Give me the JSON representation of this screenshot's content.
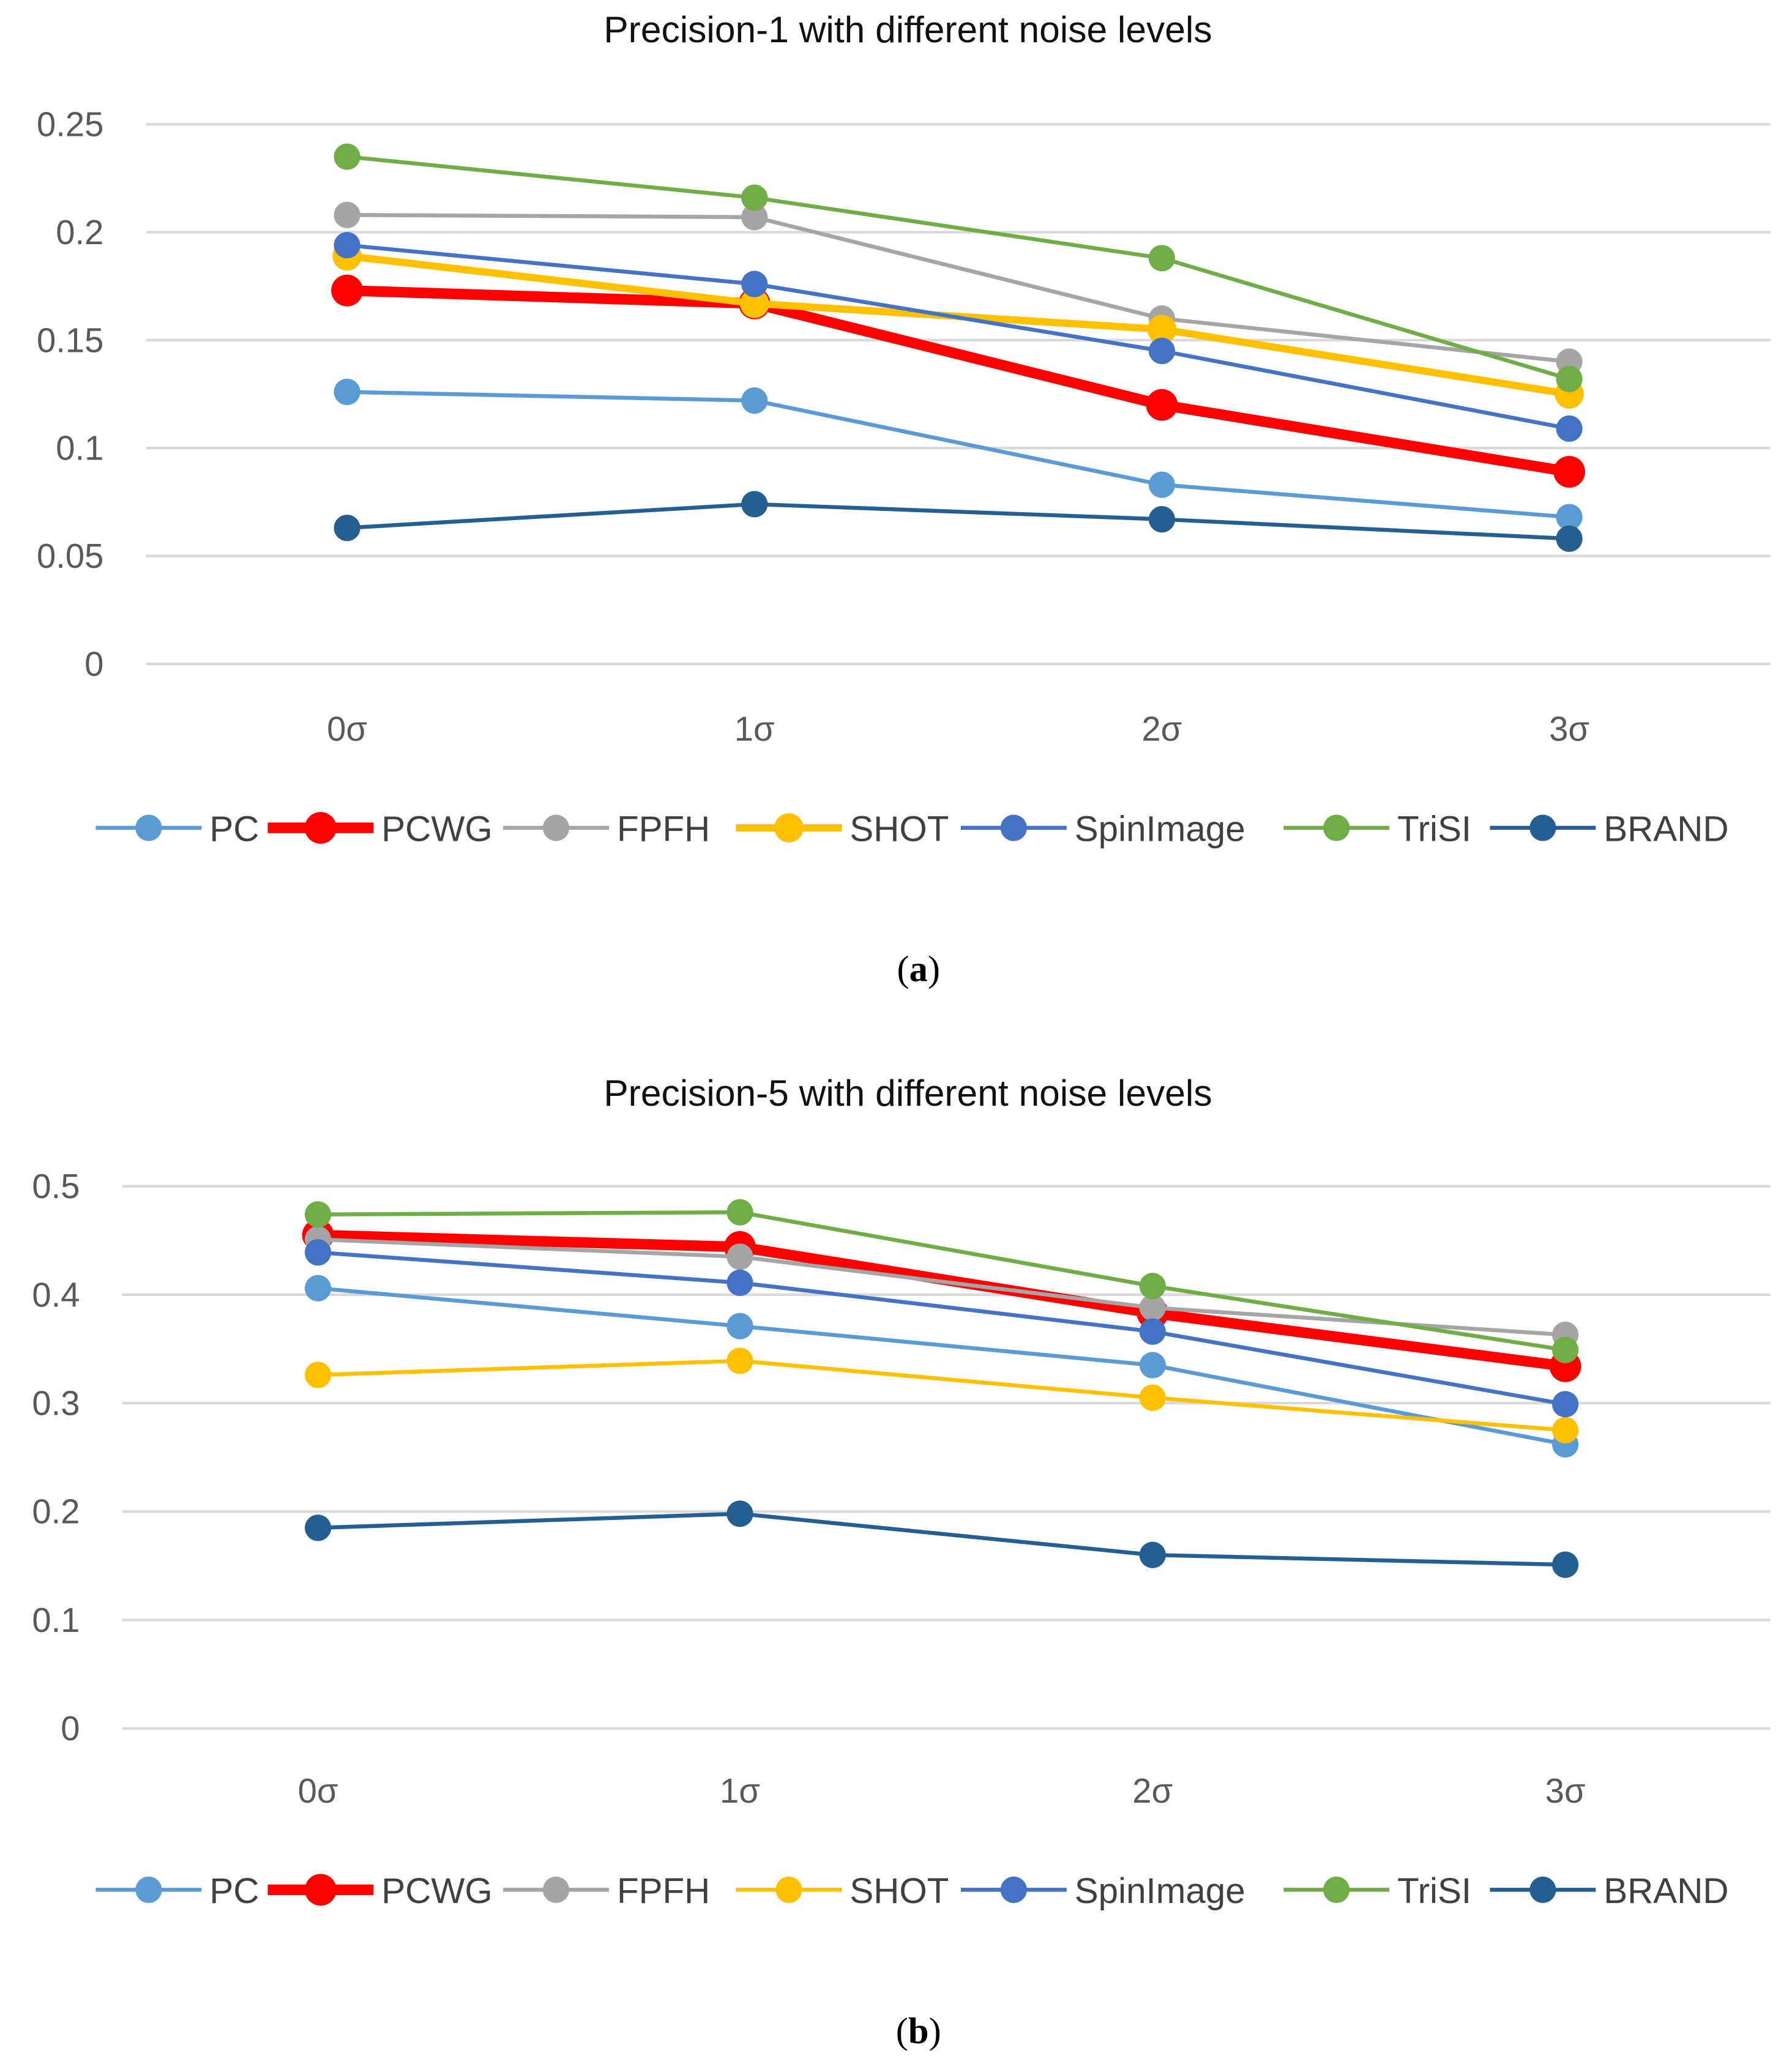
{
  "chart_data": [
    {
      "type": "line",
      "title": "Precision-1 with different noise levels",
      "caption_open": "(",
      "caption_letter": "a",
      "caption_close": ")",
      "categories": [
        "0σ",
        "1σ",
        "2σ",
        "3σ"
      ],
      "ylim": [
        0,
        0.25
      ],
      "yticks": [
        0,
        0.05,
        0.1,
        0.15,
        0.2,
        0.25
      ],
      "ytick_labels": [
        "0",
        "0.05",
        "0.1",
        "0.15",
        "0.2",
        "0.25"
      ],
      "grid": true,
      "legend": "bottom",
      "series": [
        {
          "name": "PC",
          "color": "#5B9BD5",
          "width": "thin",
          "values": [
            0.126,
            0.122,
            0.083,
            0.068
          ]
        },
        {
          "name": "PCWG",
          "color": "#FF0000",
          "width": "thick",
          "values": [
            0.173,
            0.167,
            0.12,
            0.089
          ]
        },
        {
          "name": "FPFH",
          "color": "#A5A5A5",
          "width": "thin",
          "values": [
            0.208,
            0.207,
            0.16,
            0.14
          ]
        },
        {
          "name": "SHOT",
          "color": "#FFC000",
          "width": "medium",
          "values": [
            0.189,
            0.167,
            0.155,
            0.125
          ]
        },
        {
          "name": "SpinImage",
          "color": "#4472C4",
          "width": "thin",
          "values": [
            0.194,
            0.176,
            0.145,
            0.109
          ]
        },
        {
          "name": "TriSI",
          "color": "#70AD47",
          "width": "thin",
          "values": [
            0.235,
            0.216,
            0.188,
            0.132
          ]
        },
        {
          "name": "BRAND",
          "color": "#255E91",
          "width": "thin",
          "values": [
            0.063,
            0.074,
            0.067,
            0.058
          ]
        }
      ]
    },
    {
      "type": "line",
      "title": "Precision-5 with different noise levels",
      "caption_open": "(",
      "caption_letter": "b",
      "caption_close": ")",
      "categories": [
        "0σ",
        "1σ",
        "2σ",
        "3σ"
      ],
      "ylim": [
        0,
        0.5
      ],
      "yticks": [
        0,
        0.1,
        0.2,
        0.3,
        0.4,
        0.5
      ],
      "ytick_labels": [
        "0",
        "0.1",
        "0.2",
        "0.3",
        "0.4",
        "0.5"
      ],
      "grid": true,
      "legend": "bottom",
      "series": [
        {
          "name": "PC",
          "color": "#5B9BD5",
          "width": "thin",
          "values": [
            0.406,
            0.371,
            0.335,
            0.262
          ]
        },
        {
          "name": "PCWG",
          "color": "#FF0000",
          "width": "thick",
          "values": [
            0.455,
            0.444,
            0.383,
            0.334
          ]
        },
        {
          "name": "FPFH",
          "color": "#A5A5A5",
          "width": "thin",
          "values": [
            0.451,
            0.435,
            0.388,
            0.363
          ]
        },
        {
          "name": "SHOT",
          "color": "#FFC000",
          "width": "thin",
          "values": [
            0.326,
            0.339,
            0.305,
            0.275
          ]
        },
        {
          "name": "SpinImage",
          "color": "#4472C4",
          "width": "thin",
          "values": [
            0.439,
            0.411,
            0.366,
            0.299
          ]
        },
        {
          "name": "TriSI",
          "color": "#70AD47",
          "width": "thin",
          "values": [
            0.474,
            0.476,
            0.408,
            0.349
          ]
        },
        {
          "name": "BRAND",
          "color": "#255E91",
          "width": "thin",
          "values": [
            0.185,
            0.198,
            0.16,
            0.151
          ]
        }
      ]
    }
  ]
}
